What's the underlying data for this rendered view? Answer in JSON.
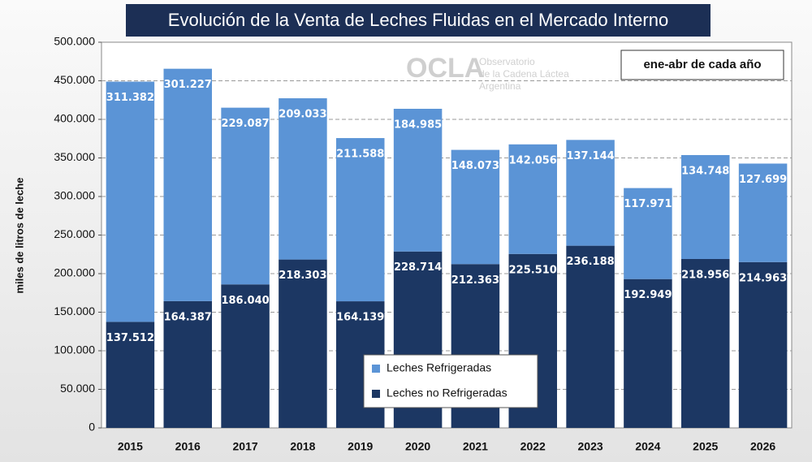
{
  "chart_data": {
    "type": "stacked_bar",
    "title": "Evolución de la Venta de Leches Fluidas en el Mercado Interno",
    "y_label": "miles de litros de leche",
    "annotation": "ene-abr de cada año",
    "watermark": {
      "name": "OCLA",
      "lines": [
        "Observatorio",
        "de la Cadena Láctea",
        "Argentina"
      ]
    },
    "categories": [
      "2015",
      "2016",
      "2017",
      "2018",
      "2019",
      "2020",
      "2021",
      "2022",
      "2023",
      "2024",
      "2025",
      "2026"
    ],
    "series": [
      {
        "name": "Leches no Refrigeradas",
        "color": "#1c3763",
        "values": [
          137512,
          164387,
          186040,
          218303,
          164139,
          228714,
          212363,
          225510,
          236188,
          192949,
          218956,
          214963
        ],
        "value_labels": [
          "137.512",
          "164.387",
          "186.040",
          "218.303",
          "164.139",
          "228.714",
          "212.363",
          "225.510",
          "236.188",
          "192.949",
          "218.956",
          "214.963"
        ]
      },
      {
        "name": "Leches Refrigeradas",
        "color": "#5b94d6",
        "values": [
          311382,
          301227,
          229087,
          209033,
          211588,
          184985,
          148073,
          142056,
          137144,
          117971,
          134748,
          127699
        ],
        "value_labels": [
          "311.382",
          "301.227",
          "229.087",
          "209.033",
          "211.588",
          "184.985",
          "148.073",
          "142.056",
          "137.144",
          "117.971",
          "134.748",
          "127.699"
        ]
      }
    ],
    "ylim": [
      0,
      500000
    ],
    "yticks": [
      0,
      {
        "value": 50000,
        "label": "50.000"
      },
      {
        "value": 100000,
        "label": "100.000"
      },
      {
        "value": 150000,
        "label": "150.000"
      },
      {
        "value": 200000,
        "label": "200.000"
      },
      {
        "value": 250000,
        "label": "250.000"
      },
      {
        "value": 300000,
        "label": "300.000"
      },
      {
        "value": 350000,
        "label": "350.000"
      },
      {
        "value": 400000,
        "label": "400.000"
      },
      {
        "value": 450000,
        "label": "450.000"
      },
      {
        "value": 500000,
        "label": "500.000"
      }
    ],
    "grid": true,
    "legend": "bottom-center"
  }
}
